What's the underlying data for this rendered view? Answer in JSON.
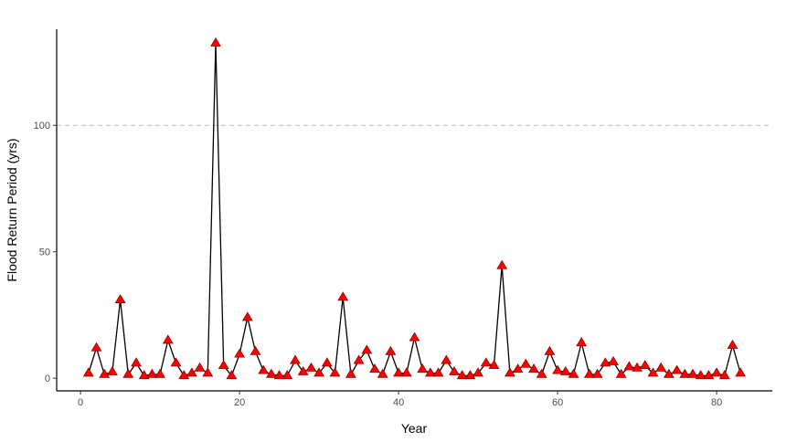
{
  "chart_data": {
    "type": "line",
    "title": "",
    "xlabel": "Year",
    "ylabel": "Flood Return Period (yrs)",
    "xlim": [
      -3,
      87
    ],
    "ylim": [
      -5,
      138
    ],
    "x_ticks": [
      0,
      20,
      40,
      60,
      80
    ],
    "y_ticks": [
      0,
      50,
      100
    ],
    "grid": false,
    "reference_line": {
      "y": 100,
      "style": "dashed",
      "color": "#bbbbbb"
    },
    "colors": {
      "line": "#000000",
      "marker": "#ff0000",
      "marker_edge": "#990000"
    },
    "marker": "triangle",
    "series": [
      {
        "x": [
          1,
          2,
          3,
          4,
          5,
          6,
          7,
          8,
          9,
          10,
          11,
          12,
          13,
          14,
          15,
          16,
          17,
          18,
          19,
          20,
          21,
          22,
          23,
          24,
          25,
          26,
          27,
          28,
          29,
          30,
          31,
          32,
          33,
          34,
          35,
          36,
          37,
          38,
          39,
          40,
          41,
          42,
          43,
          44,
          45,
          46,
          47,
          48,
          49,
          50,
          51,
          52,
          53,
          54,
          55,
          56,
          57,
          58,
          59,
          60,
          61,
          62,
          63,
          64,
          65,
          66,
          67,
          68,
          69,
          70,
          71,
          72,
          73,
          74,
          75,
          76,
          77,
          78,
          79,
          80,
          81,
          82,
          83
        ],
        "values": [
          2,
          12,
          1.5,
          2.5,
          31,
          1.5,
          6,
          1,
          1.5,
          1.5,
          15,
          6,
          1,
          2,
          4,
          2,
          132.5,
          5,
          1,
          9.5,
          24,
          10.5,
          3,
          1.5,
          1,
          1,
          7,
          2.5,
          4,
          2,
          6,
          2,
          32,
          1.5,
          7,
          11,
          3.5,
          1.5,
          10.5,
          2,
          2,
          16,
          3.5,
          2,
          2,
          7,
          2.5,
          1,
          1,
          2,
          6,
          5,
          44.5,
          2,
          3.5,
          5.5,
          3.5,
          1.5,
          10.5,
          3,
          2.5,
          1.5,
          14,
          1.5,
          1.5,
          6,
          6.5,
          1.5,
          4.5,
          4,
          5,
          2,
          4,
          1.5,
          3,
          1.5,
          1.5,
          1,
          1,
          2,
          1,
          13,
          2
        ]
      }
    ]
  }
}
